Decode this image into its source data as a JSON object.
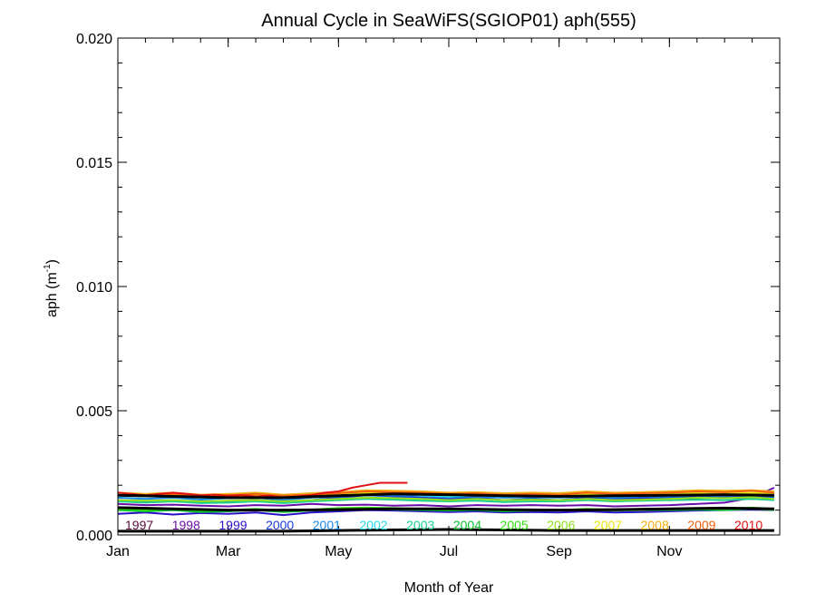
{
  "chart_data": {
    "type": "line",
    "title": "Annual Cycle in SeaWiFS(SGIOP01) aph(555)",
    "xlabel": "Month of Year",
    "ylabel": "aph (m",
    "ylabel_sup": "-1",
    "ylabel_close": ")",
    "xlim": [
      1,
      13
    ],
    "ylim": [
      0,
      0.02
    ],
    "x_ticks": [
      {
        "x": 1,
        "label": "Jan"
      },
      {
        "x": 3,
        "label": "Mar"
      },
      {
        "x": 5,
        "label": "May"
      },
      {
        "x": 7,
        "label": "Jul"
      },
      {
        "x": 9,
        "label": "Sep"
      },
      {
        "x": 11,
        "label": "Nov"
      }
    ],
    "y_ticks": [
      {
        "y": 0.0,
        "label": "0.000"
      },
      {
        "y": 0.005,
        "label": "0.005"
      },
      {
        "y": 0.01,
        "label": "0.010"
      },
      {
        "y": 0.015,
        "label": "0.015"
      },
      {
        "y": 0.02,
        "label": "0.020"
      }
    ],
    "y_minor_step": 0.001,
    "x_minor_step": 0.5,
    "series": [
      {
        "name": "1997",
        "color": "#5a0a3c",
        "x": [
          9.0,
          9.5,
          10.0,
          10.5,
          11.0,
          11.5,
          12.0,
          12.5,
          12.9
        ],
        "values": [
          0.00135,
          0.00142,
          0.00138,
          0.00145,
          0.0014,
          0.00148,
          0.00152,
          0.00145,
          0.0015
        ]
      },
      {
        "name": "1998",
        "color": "#6a0fa8",
        "x": [
          1.0,
          1.5,
          2.0,
          2.5,
          3.0,
          3.5,
          4.0,
          4.5,
          5.0,
          5.5,
          6.0,
          6.5,
          7.0,
          7.5,
          8.0,
          8.5,
          9.0,
          9.5,
          10.0,
          10.5,
          11.0,
          11.5,
          12.0,
          12.5,
          12.9
        ],
        "values": [
          0.00125,
          0.0012,
          0.00122,
          0.00118,
          0.00115,
          0.0012,
          0.00118,
          0.00125,
          0.0012,
          0.00122,
          0.00118,
          0.0012,
          0.00115,
          0.0012,
          0.00118,
          0.0012,
          0.00118,
          0.0012,
          0.00115,
          0.00118,
          0.0012,
          0.00125,
          0.0013,
          0.0015,
          0.0019
        ]
      },
      {
        "name": "1999",
        "color": "#2a10c8",
        "x": [
          1.0,
          1.5,
          2.0,
          2.5,
          3.0,
          3.5,
          4.0,
          4.5,
          5.0,
          5.5,
          6.0,
          6.5,
          7.0,
          7.5,
          8.0,
          8.5,
          9.0,
          9.5,
          10.0,
          10.5,
          11.0,
          11.5,
          12.0,
          12.5,
          12.9
        ],
        "values": [
          0.00085,
          0.0009,
          0.00082,
          0.00088,
          0.00085,
          0.0009,
          0.0008,
          0.0009,
          0.00095,
          0.001,
          0.00098,
          0.00095,
          0.00092,
          0.00095,
          0.0009,
          0.00092,
          0.0009,
          0.00095,
          0.0009,
          0.00092,
          0.00095,
          0.00098,
          0.001,
          0.00102,
          0.001
        ]
      },
      {
        "name": "2000",
        "color": "#1a3ad8",
        "x": [
          1.0,
          1.5,
          2.0,
          2.5,
          3.0,
          3.5,
          4.0,
          4.5,
          5.0,
          5.5,
          6.0,
          6.5,
          7.0,
          7.5,
          8.0,
          8.5,
          9.0,
          9.5,
          10.0,
          10.5,
          11.0,
          11.5,
          12.0,
          12.5,
          12.9
        ],
        "values": [
          0.0014,
          0.00135,
          0.0014,
          0.0013,
          0.00135,
          0.0014,
          0.0013,
          0.0014,
          0.0015,
          0.0016,
          0.00155,
          0.0015,
          0.00145,
          0.0015,
          0.0014,
          0.00145,
          0.0014,
          0.0015,
          0.00145,
          0.0015,
          0.0015,
          0.00155,
          0.0015,
          0.0016,
          0.0015
        ]
      },
      {
        "name": "2001",
        "color": "#1a8ae8",
        "x": [
          1.0,
          1.5,
          2.0,
          2.5,
          3.0,
          3.5,
          4.0,
          4.5,
          5.0,
          5.5,
          6.0,
          6.5,
          7.0,
          7.5,
          8.0,
          8.5,
          9.0,
          9.5,
          10.0,
          10.5,
          11.0,
          11.5,
          12.0,
          12.5,
          12.9
        ],
        "values": [
          0.0015,
          0.00145,
          0.0015,
          0.00142,
          0.00148,
          0.0015,
          0.0014,
          0.0015,
          0.00155,
          0.0016,
          0.0016,
          0.00158,
          0.00152,
          0.00155,
          0.0015,
          0.00152,
          0.0015,
          0.00155,
          0.0015,
          0.00155,
          0.00155,
          0.0016,
          0.00158,
          0.00162,
          0.00155
        ]
      },
      {
        "name": "2002",
        "color": "#22e0e8",
        "x": [
          1.0,
          1.5,
          2.0,
          2.5,
          3.0,
          3.5,
          4.0,
          4.5,
          5.0,
          5.5,
          6.0,
          6.5,
          7.0,
          7.5,
          8.0,
          8.5,
          9.0,
          9.5,
          10.0,
          10.5,
          11.0,
          11.5,
          12.0,
          12.5,
          12.9
        ],
        "values": [
          0.0016,
          0.00155,
          0.00158,
          0.0015,
          0.00155,
          0.00158,
          0.0015,
          0.00158,
          0.00162,
          0.0017,
          0.00168,
          0.0016,
          0.00155,
          0.0016,
          0.00155,
          0.00158,
          0.00155,
          0.0017,
          0.00158,
          0.0016,
          0.0016,
          0.00165,
          0.00162,
          0.00168,
          0.0016
        ]
      },
      {
        "name": "2003",
        "color": "#18d090",
        "x": [
          1.0,
          1.5,
          2.0,
          2.5,
          3.0,
          3.5,
          4.0,
          4.5,
          5.0,
          5.5,
          6.0,
          6.5,
          7.0,
          7.5,
          8.0,
          8.5,
          9.0,
          9.5,
          10.0,
          10.5,
          11.0,
          11.5,
          12.0,
          12.5,
          12.9
        ],
        "values": [
          0.00135,
          0.0013,
          0.00135,
          0.00128,
          0.0013,
          0.00135,
          0.00128,
          0.00135,
          0.0014,
          0.00145,
          0.00142,
          0.00138,
          0.00135,
          0.00138,
          0.00132,
          0.00135,
          0.00135,
          0.0014,
          0.00135,
          0.00138,
          0.0014,
          0.00142,
          0.0014,
          0.00145,
          0.0014
        ]
      },
      {
        "name": "2004",
        "color": "#10c030",
        "x": [
          1.0,
          1.5,
          2.0,
          2.5,
          3.0,
          3.5,
          4.0,
          4.5,
          5.0,
          5.5,
          6.0,
          6.5,
          7.0,
          7.5,
          8.0,
          8.5,
          9.0,
          9.5,
          10.0,
          10.5,
          11.0,
          11.5,
          12.0,
          12.5,
          12.9
        ],
        "values": [
          0.001,
          0.00095,
          0.001,
          0.00092,
          0.00095,
          0.001,
          0.00092,
          0.00098,
          0.001,
          0.00105,
          0.00102,
          0.001,
          0.00098,
          0.001,
          0.00095,
          0.00098,
          0.00098,
          0.001,
          0.00098,
          0.001,
          0.001,
          0.00102,
          0.001,
          0.00105,
          0.001
        ]
      },
      {
        "name": "2005",
        "color": "#30e010",
        "x": [
          1.0,
          1.5,
          2.0,
          2.5,
          3.0,
          3.5,
          4.0,
          4.5,
          5.0,
          5.5,
          6.0,
          6.5,
          7.0,
          7.5,
          8.0,
          8.5,
          9.0,
          9.5,
          10.0,
          10.5,
          11.0,
          11.5,
          12.0,
          12.5,
          12.9
        ],
        "values": [
          0.00105,
          0.001,
          0.00105,
          0.00098,
          0.001,
          0.00105,
          0.00098,
          0.00102,
          0.00108,
          0.0011,
          0.00108,
          0.00105,
          0.00102,
          0.00105,
          0.001,
          0.00102,
          0.001,
          0.00105,
          0.00102,
          0.00105,
          0.00105,
          0.00108,
          0.00105,
          0.0011,
          0.00105
        ]
      },
      {
        "name": "2006",
        "color": "#90e020",
        "x": [
          1.0,
          1.5,
          2.0,
          2.5,
          3.0,
          3.5,
          4.0,
          4.5,
          5.0,
          5.5,
          6.0,
          6.5,
          7.0,
          7.5,
          8.0,
          8.5,
          9.0,
          9.5,
          10.0,
          10.5,
          11.0,
          11.5,
          12.0,
          12.5,
          12.9
        ],
        "values": [
          0.0014,
          0.00138,
          0.0014,
          0.00135,
          0.00138,
          0.0014,
          0.00135,
          0.0014,
          0.00145,
          0.0015,
          0.00148,
          0.00145,
          0.0014,
          0.00145,
          0.0014,
          0.00142,
          0.0014,
          0.00145,
          0.0014,
          0.00142,
          0.00145,
          0.0015,
          0.00148,
          0.00152,
          0.00145
        ]
      },
      {
        "name": "2007",
        "color": "#e8e810",
        "x": [
          1.0,
          1.5,
          2.0,
          2.5,
          3.0,
          3.5,
          4.0,
          4.5,
          5.0,
          5.5,
          6.0,
          6.5,
          7.0,
          7.5,
          8.0,
          8.5,
          9.0,
          9.5,
          10.0,
          10.5,
          11.0,
          11.5,
          12.0,
          12.5,
          12.9
        ],
        "values": [
          0.0016,
          0.00158,
          0.0016,
          0.00155,
          0.00158,
          0.0016,
          0.00155,
          0.0016,
          0.00165,
          0.0017,
          0.00168,
          0.00165,
          0.0016,
          0.00165,
          0.00162,
          0.00165,
          0.0016,
          0.00165,
          0.0016,
          0.00162,
          0.00165,
          0.00168,
          0.00165,
          0.0017,
          0.00165
        ]
      },
      {
        "name": "2008",
        "color": "#f0b010",
        "x": [
          1.0,
          1.5,
          2.0,
          2.5,
          3.0,
          3.5,
          4.0,
          4.5,
          5.0,
          5.5,
          6.0,
          6.5,
          7.0,
          7.5,
          8.0,
          8.5,
          9.0,
          9.5,
          10.0,
          10.5,
          11.0,
          11.5,
          12.0,
          12.5,
          12.9
        ],
        "values": [
          0.0017,
          0.00165,
          0.0017,
          0.00162,
          0.00165,
          0.0017,
          0.00162,
          0.00168,
          0.00172,
          0.0018,
          0.00178,
          0.00175,
          0.0017,
          0.00172,
          0.00168,
          0.0017,
          0.00168,
          0.00175,
          0.0017,
          0.00172,
          0.00175,
          0.0018,
          0.00178,
          0.0018,
          0.00175
        ]
      },
      {
        "name": "2009",
        "color": "#f06010",
        "x": [
          1.0,
          1.5,
          2.0,
          2.5,
          3.0,
          3.5,
          4.0,
          4.5,
          5.0,
          5.5,
          6.0,
          6.5,
          7.0,
          7.5,
          8.0,
          8.5,
          9.0,
          9.5,
          10.0,
          10.5,
          11.0,
          11.5,
          12.0,
          12.5,
          12.9
        ],
        "values": [
          0.0016,
          0.00158,
          0.00165,
          0.00155,
          0.0016,
          0.00165,
          0.00158,
          0.00162,
          0.00168,
          0.00175,
          0.00172,
          0.0017,
          0.00165,
          0.00168,
          0.00162,
          0.00165,
          0.00162,
          0.0017,
          0.00165,
          0.00168,
          0.0017,
          0.00175,
          0.00172,
          0.00178,
          0.0017
        ]
      },
      {
        "name": "2010",
        "color": "#e01010",
        "x": [
          1.0,
          1.25,
          1.5,
          1.75,
          2.0,
          2.25,
          2.5,
          2.75,
          3.0,
          3.25,
          3.5,
          3.75,
          4.0,
          4.25,
          4.5,
          4.75,
          5.0,
          5.25,
          5.5,
          5.75,
          6.0,
          6.25
        ],
        "values": [
          0.0017,
          0.00165,
          0.0016,
          0.00165,
          0.0017,
          0.00165,
          0.0016,
          0.00162,
          0.00158,
          0.0016,
          0.00155,
          0.00158,
          0.0015,
          0.00155,
          0.0016,
          0.0017,
          0.00175,
          0.0019,
          0.002,
          0.0021,
          0.0021,
          0.0021
        ]
      }
    ],
    "black_lines": [
      {
        "x": [
          1.0,
          2.0,
          3.0,
          4.0,
          5.0,
          6.0,
          7.0,
          8.0,
          9.0,
          10.0,
          11.0,
          12.0,
          12.9
        ],
        "values": [
          0.0016,
          0.00155,
          0.0015,
          0.0015,
          0.00158,
          0.00165,
          0.00162,
          0.00158,
          0.00155,
          0.00158,
          0.0016,
          0.00162,
          0.0016
        ]
      },
      {
        "x": [
          1.0,
          2.0,
          3.0,
          4.0,
          5.0,
          6.0,
          7.0,
          8.0,
          9.0,
          10.0,
          11.0,
          12.0,
          12.9
        ],
        "values": [
          0.0011,
          0.00105,
          0.001,
          0.001,
          0.00102,
          0.00105,
          0.00105,
          0.00102,
          0.001,
          0.00102,
          0.00105,
          0.00108,
          0.00105
        ]
      },
      {
        "x": [
          1.0,
          2.0,
          3.0,
          4.0,
          5.0,
          6.0,
          7.0,
          8.0,
          9.0,
          10.0,
          11.0,
          12.0,
          12.9
        ],
        "values": [
          0.00015,
          0.00015,
          0.00015,
          0.00015,
          0.00018,
          0.0002,
          0.00022,
          0.0002,
          0.00018,
          0.00018,
          0.00018,
          0.00018,
          0.00018
        ]
      }
    ],
    "legend": {
      "placement": "bottom-inside",
      "y": 0.0004
    }
  }
}
